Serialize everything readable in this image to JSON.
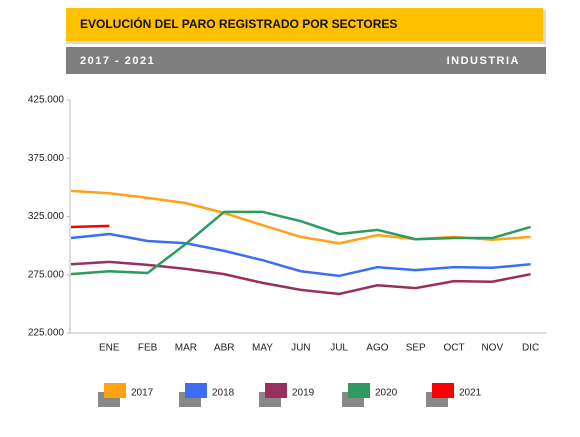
{
  "chart_data": {
    "type": "line",
    "title": "EVOLUCIÓN DEL PARO REGISTRADO POR SECTORES",
    "subtitle": "2017 - 2021",
    "sector": "INDUSTRIA",
    "categories": [
      null,
      "ENE",
      "FEB",
      "MAR",
      "ABR",
      "MAY",
      "JUN",
      "JUL",
      "AGO",
      "SEP",
      "OCT",
      "NOV",
      "DIC"
    ],
    "series": [
      {
        "name": "2017",
        "color": "#ffa216",
        "values": [
          347000,
          345000,
          341000,
          336500,
          328000,
          317500,
          307500,
          302000,
          309000,
          305500,
          307500,
          305000,
          307500
        ]
      },
      {
        "name": "2018",
        "color": "#3b6ef5",
        "values": [
          306500,
          310000,
          304000,
          302000,
          295500,
          287500,
          278000,
          274000,
          281500,
          279000,
          281500,
          281000,
          284000
        ]
      },
      {
        "name": "2019",
        "color": "#98305e",
        "values": [
          284000,
          286000,
          283500,
          280000,
          275500,
          268000,
          262000,
          258500,
          266000,
          263500,
          269500,
          269000,
          275500
        ]
      },
      {
        "name": "2020",
        "color": "#2e9a5e",
        "values": [
          275500,
          278000,
          276500,
          301500,
          329000,
          329000,
          321000,
          310000,
          313500,
          305500,
          306500,
          306500,
          316000
        ]
      },
      {
        "name": "2021",
        "color": "#ff0000",
        "values": [
          316000,
          317000,
          null,
          null,
          null,
          null,
          null,
          null,
          null,
          null,
          null,
          null,
          null
        ]
      }
    ],
    "ylim": [
      225000,
      425000
    ],
    "yticks": [
      {
        "value": 225000,
        "label": "225.000"
      },
      {
        "value": 275000,
        "label": "275.000"
      },
      {
        "value": 325000,
        "label": "325.000"
      },
      {
        "value": 375000,
        "label": "375.000"
      },
      {
        "value": 425000,
        "label": "425.000"
      }
    ],
    "legend": "bottom"
  }
}
